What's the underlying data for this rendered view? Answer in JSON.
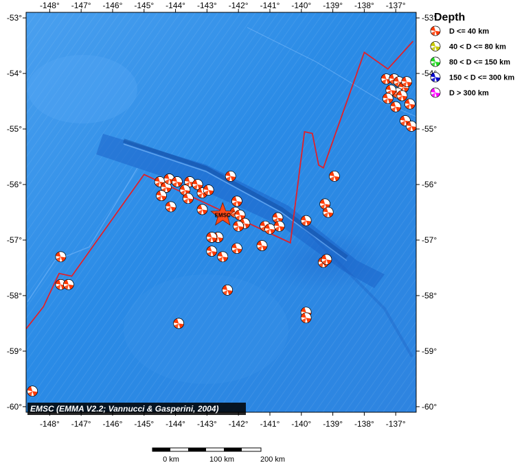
{
  "map": {
    "lon_range": [
      -148.75,
      -136.35
    ],
    "lat_range": [
      -60.1,
      -52.9
    ],
    "lon_ticks": [
      {
        "value": -148,
        "label": "-148°"
      },
      {
        "value": -147,
        "label": "-147°"
      },
      {
        "value": -146,
        "label": "-146°"
      },
      {
        "value": -145,
        "label": "-145°"
      },
      {
        "value": -144,
        "label": "-144°"
      },
      {
        "value": -143,
        "label": "-143°"
      },
      {
        "value": -142,
        "label": "-142°"
      },
      {
        "value": -141,
        "label": "-141°"
      },
      {
        "value": -140,
        "label": "-140°"
      },
      {
        "value": -139,
        "label": "-139°"
      },
      {
        "value": -138,
        "label": "-138°"
      },
      {
        "value": -137,
        "label": "-137°"
      }
    ],
    "lat_ticks": [
      {
        "value": -53,
        "label": "-53°"
      },
      {
        "value": -54,
        "label": "-54°"
      },
      {
        "value": -55,
        "label": "-55°"
      },
      {
        "value": -56,
        "label": "-56°"
      },
      {
        "value": -57,
        "label": "-57°"
      },
      {
        "value": -58,
        "label": "-58°"
      },
      {
        "value": -59,
        "label": "-59°"
      },
      {
        "value": -60,
        "label": "-60°"
      }
    ],
    "ocean_color": "#2a8ee6",
    "frame_color": "#000000"
  },
  "boundary_line": {
    "color": "#e0202a",
    "points": [
      [
        -148.75,
        -58.6
      ],
      [
        -148.2,
        -58.2
      ],
      [
        -147.7,
        -57.6
      ],
      [
        -147.3,
        -57.65
      ],
      [
        -145.0,
        -55.82
      ],
      [
        -140.35,
        -57.05
      ],
      [
        -139.9,
        -55.05
      ],
      [
        -139.65,
        -55.08
      ],
      [
        -139.45,
        -55.65
      ],
      [
        -139.3,
        -55.7
      ],
      [
        -138.0,
        -53.62
      ],
      [
        -137.25,
        -53.92
      ],
      [
        -136.45,
        -53.42
      ]
    ]
  },
  "epicenter": {
    "label": "EMSC",
    "lon": -142.5,
    "lat": -56.55,
    "color": "#ff4a1a"
  },
  "events": [
    {
      "lon": -144.5,
      "lat": -55.95
    },
    {
      "lon": -144.3,
      "lat": -56.05
    },
    {
      "lon": -144.2,
      "lat": -55.9
    },
    {
      "lon": -143.95,
      "lat": -55.95
    },
    {
      "lon": -143.55,
      "lat": -55.95
    },
    {
      "lon": -143.3,
      "lat": -56.0
    },
    {
      "lon": -143.15,
      "lat": -56.15
    },
    {
      "lon": -142.95,
      "lat": -56.1
    },
    {
      "lon": -143.7,
      "lat": -56.1
    },
    {
      "lon": -143.6,
      "lat": -56.25
    },
    {
      "lon": -144.45,
      "lat": -56.2
    },
    {
      "lon": -144.15,
      "lat": -56.4
    },
    {
      "lon": -143.15,
      "lat": -56.45
    },
    {
      "lon": -142.25,
      "lat": -55.85
    },
    {
      "lon": -142.05,
      "lat": -56.3
    },
    {
      "lon": -142.1,
      "lat": -56.5
    },
    {
      "lon": -141.95,
      "lat": -56.55
    },
    {
      "lon": -141.8,
      "lat": -56.7
    },
    {
      "lon": -142.0,
      "lat": -56.75
    },
    {
      "lon": -141.15,
      "lat": -56.75
    },
    {
      "lon": -141.0,
      "lat": -56.8
    },
    {
      "lon": -140.75,
      "lat": -56.6
    },
    {
      "lon": -140.7,
      "lat": -56.75
    },
    {
      "lon": -142.65,
      "lat": -56.95
    },
    {
      "lon": -142.85,
      "lat": -56.95
    },
    {
      "lon": -141.25,
      "lat": -57.1
    },
    {
      "lon": -142.05,
      "lat": -57.15
    },
    {
      "lon": -142.85,
      "lat": -57.2
    },
    {
      "lon": -142.5,
      "lat": -57.3
    },
    {
      "lon": -139.3,
      "lat": -57.4
    },
    {
      "lon": -139.2,
      "lat": -57.35
    },
    {
      "lon": -139.85,
      "lat": -56.65
    },
    {
      "lon": -139.25,
      "lat": -56.35
    },
    {
      "lon": -139.15,
      "lat": -56.5
    },
    {
      "lon": -138.95,
      "lat": -55.85
    },
    {
      "lon": -147.65,
      "lat": -57.3
    },
    {
      "lon": -147.65,
      "lat": -57.8
    },
    {
      "lon": -147.4,
      "lat": -57.8
    },
    {
      "lon": -142.35,
      "lat": -57.9
    },
    {
      "lon": -143.9,
      "lat": -58.5
    },
    {
      "lon": -139.85,
      "lat": -58.3
    },
    {
      "lon": -139.85,
      "lat": -58.4
    },
    {
      "lon": -148.55,
      "lat": -59.72
    },
    {
      "lon": -137.3,
      "lat": -54.1
    },
    {
      "lon": -137.05,
      "lat": -54.1
    },
    {
      "lon": -136.9,
      "lat": -54.15
    },
    {
      "lon": -136.75,
      "lat": -54.25
    },
    {
      "lon": -136.65,
      "lat": -54.15
    },
    {
      "lon": -136.95,
      "lat": -54.35
    },
    {
      "lon": -137.15,
      "lat": -54.3
    },
    {
      "lon": -137.25,
      "lat": -54.45
    },
    {
      "lon": -136.8,
      "lat": -54.4
    },
    {
      "lon": -136.55,
      "lat": -54.55
    },
    {
      "lon": -137.0,
      "lat": -54.6
    },
    {
      "lon": -136.7,
      "lat": -54.85
    },
    {
      "lon": -136.5,
      "lat": -54.95
    }
  ],
  "legend": {
    "title": "Depth",
    "items": [
      {
        "label": "D <= 40 km",
        "color": "#ff3a00"
      },
      {
        "label": "40 < D <= 80 km",
        "color": "#c8c800"
      },
      {
        "label": "80 < D <= 150 km",
        "color": "#22d822"
      },
      {
        "label": "150 < D <= 300 km",
        "color": "#0000cc"
      },
      {
        "label": "D > 300 km",
        "color": "#ff00ff"
      }
    ]
  },
  "credit": "EMSC (EMMA V2.2; Vannucci & Gasperini, 2004)",
  "scale_bar": {
    "labels": [
      "0 km",
      "100 km",
      "200 km"
    ]
  }
}
